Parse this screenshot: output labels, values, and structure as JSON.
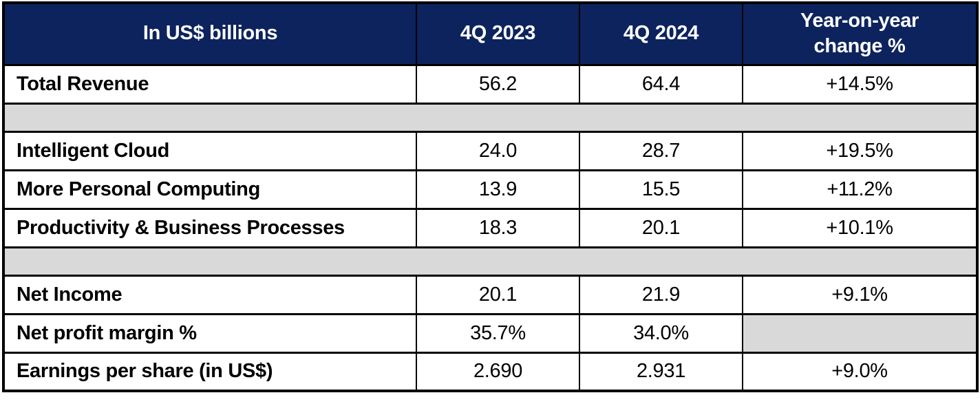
{
  "colors": {
    "header_bg": "#0d235e",
    "spacer_bg": "#d9d9d9",
    "border": "#000000",
    "header_text": "#ffffff",
    "body_text": "#000000"
  },
  "table": {
    "columns": [
      {
        "label": "In US$ billions"
      },
      {
        "label": "4Q 2023"
      },
      {
        "label": "4Q 2024"
      },
      {
        "label": "Year-on-year",
        "label2": "change %"
      }
    ],
    "rows": [
      {
        "label": "Total Revenue",
        "values": [
          "56.2",
          "64.4",
          "+14.5%"
        ]
      },
      {
        "label": "Intelligent Cloud",
        "values": [
          "24.0",
          "28.7",
          "+19.5%"
        ]
      },
      {
        "label": "More Personal Computing",
        "values": [
          "13.9",
          "15.5",
          "+11.2%"
        ]
      },
      {
        "label": "Productivity & Business Processes",
        "values": [
          "18.3",
          "20.1",
          "+10.1%"
        ]
      },
      {
        "label": "Net Income",
        "values": [
          "20.1",
          "21.9",
          "+9.1%"
        ]
      },
      {
        "label": "Net profit margin %",
        "values": [
          "35.7%",
          "34.0%",
          ""
        ]
      },
      {
        "label": "Earnings per share (in US$)",
        "values": [
          "2.690",
          "2.931",
          "+9.0%"
        ]
      }
    ]
  },
  "chart_data": {
    "type": "table",
    "title": "In US$ billions",
    "columns": [
      "In US$ billions",
      "4Q 2023",
      "4Q 2024",
      "Year-on-year change %"
    ],
    "rows": [
      [
        "Total Revenue",
        "56.2",
        "64.4",
        "+14.5%"
      ],
      [
        "Intelligent Cloud",
        "24.0",
        "28.7",
        "+19.5%"
      ],
      [
        "More Personal Computing",
        "13.9",
        "15.5",
        "+11.2%"
      ],
      [
        "Productivity & Business Processes",
        "18.3",
        "20.1",
        "+10.1%"
      ],
      [
        "Net Income",
        "20.1",
        "21.9",
        "+9.1%"
      ],
      [
        "Net profit margin %",
        "35.7%",
        "34.0%",
        ""
      ],
      [
        "Earnings per share (in US$)",
        "2.690",
        "2.931",
        "+9.0%"
      ]
    ],
    "layout_hints": {
      "header_style": "navy background, white bold text",
      "spacer_rows_after": [
        "Total Revenue",
        "Productivity & Business Processes"
      ],
      "empty_cells": [
        [
          "Net profit margin %",
          "Year-on-year change %"
        ]
      ]
    }
  }
}
